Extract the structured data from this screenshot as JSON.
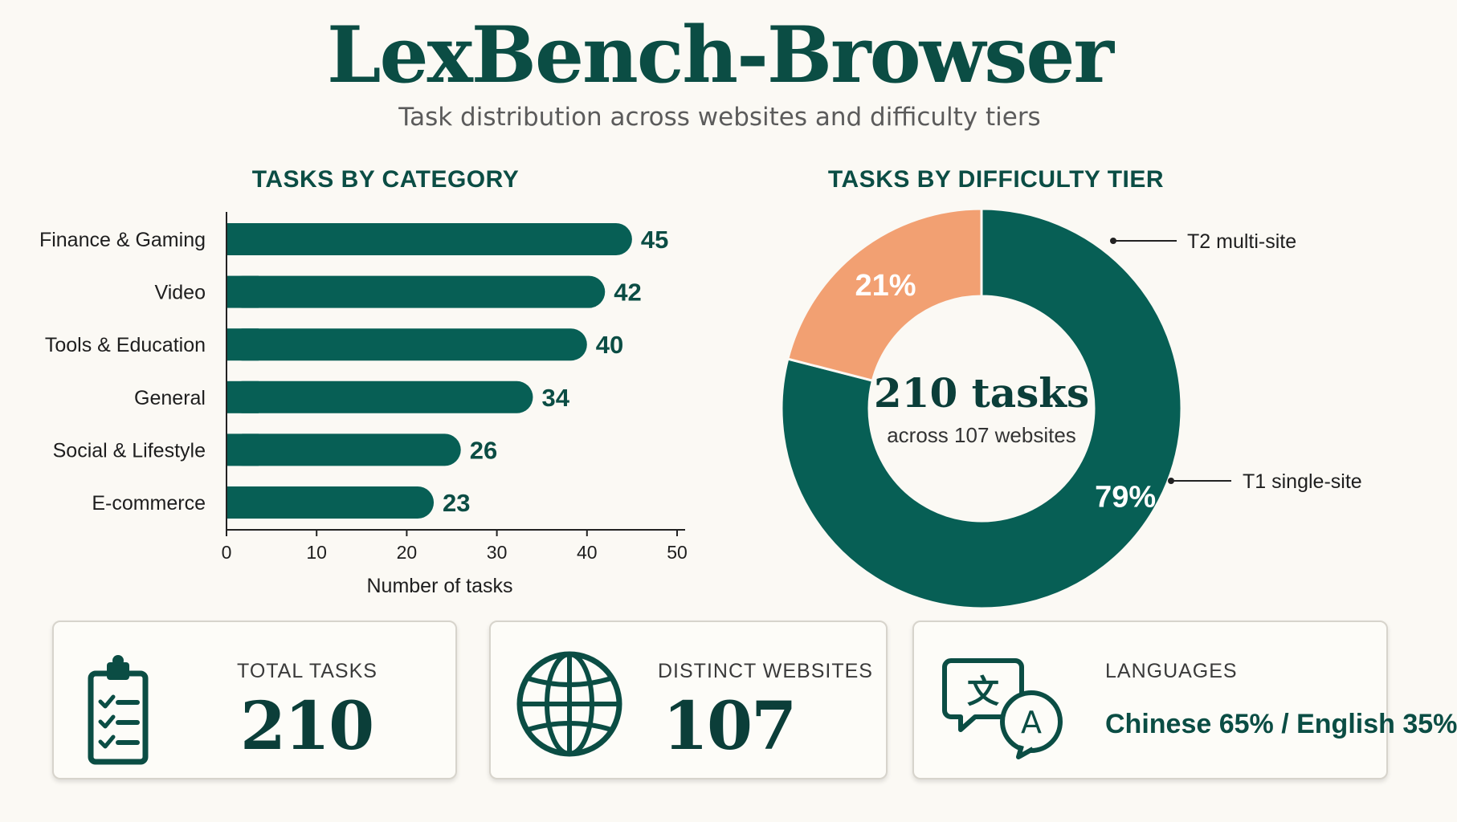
{
  "title": "LexBench-Browser",
  "subtitle": "Task distribution across websites and difficulty tiers",
  "colors": {
    "primary": "#075f55",
    "accent": "#f2a072",
    "text": "#0b4d44",
    "background": "#fbf9f4"
  },
  "chart_data": [
    {
      "type": "bar",
      "orientation": "horizontal",
      "title": "TASKS BY CATEGORY",
      "categories": [
        "Finance & Gaming",
        "Video",
        "Tools & Education",
        "General",
        "Social & Lifestyle",
        "E-commerce"
      ],
      "values": [
        45,
        42,
        40,
        34,
        26,
        23
      ],
      "xlabel": "Number of tasks",
      "ylabel": "",
      "xlim": [
        0,
        50
      ],
      "xticks": [
        "0",
        "10",
        "20",
        "30",
        "40",
        "50"
      ],
      "grid": false,
      "color": "#075f55"
    },
    {
      "type": "pie",
      "variant": "donut",
      "title": "TASKS BY DIFFICULTY TIER",
      "slices": [
        {
          "name": "T1 single-site",
          "value": 79,
          "label": "79%",
          "color": "#075f55"
        },
        {
          "name": "T2 multi-site",
          "value": 21,
          "label": "21%",
          "color": "#f2a072"
        }
      ],
      "center_main": "210 tasks",
      "center_sub": "across 107 websites"
    }
  ],
  "cards": [
    {
      "label": "TOTAL TASKS",
      "value": "210",
      "icon": "clipboard-checklist-icon"
    },
    {
      "label": "DISTINCT WEBSITES",
      "value": "107",
      "icon": "globe-icon"
    },
    {
      "label": "LANGUAGES",
      "value": "Chinese 65% / English 35%",
      "icon": "translate-icon"
    }
  ]
}
